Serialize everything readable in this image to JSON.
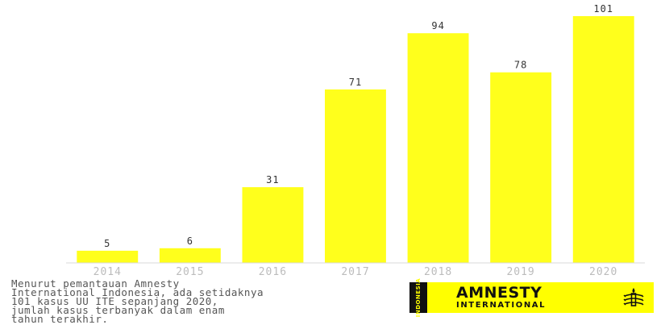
{
  "colors": {
    "bar": "#ffff1c",
    "logo_yellow": "#ffff00"
  },
  "chart_data": {
    "type": "bar",
    "categories": [
      "2014",
      "2015",
      "2016",
      "2017",
      "2018",
      "2019",
      "2020"
    ],
    "values": [
      5,
      6,
      31,
      71,
      94,
      78,
      101
    ],
    "ylim": [
      0,
      101
    ],
    "title": "",
    "xlabel": "",
    "ylabel": "",
    "grid": false,
    "data_labels": true
  },
  "caption": "Menurut pemantauan Amnesty\nInternational Indonesia, ada setidaknya\n101 kasus UU ITE sepanjang 2020,\njumlah kasus terbanyak dalam enam\ntahun terakhir.",
  "logo": {
    "strip_text": "INDONESIA",
    "main": "AMNESTY",
    "sub": "INTERNATIONAL",
    "icon": "candle-in-barbed-wire-icon"
  }
}
